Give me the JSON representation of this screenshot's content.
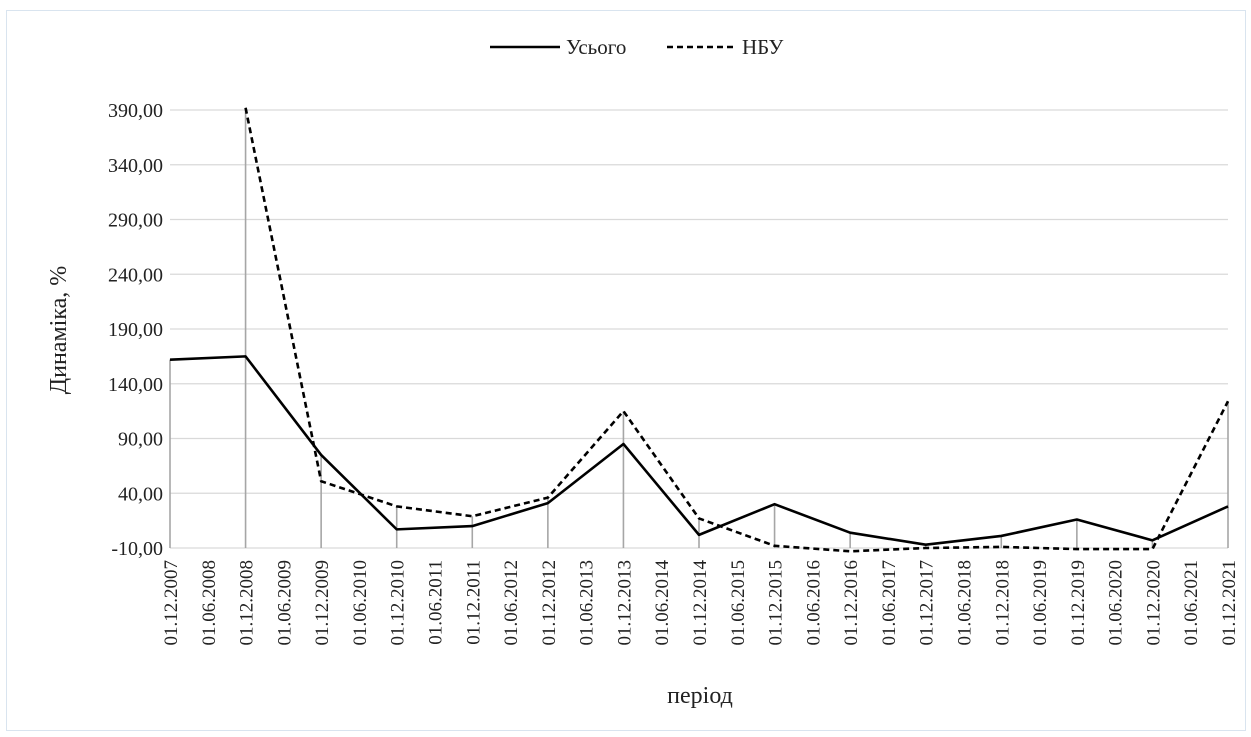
{
  "chart_data": {
    "type": "line",
    "title": "",
    "xlabel": "період",
    "ylabel": "Динаміка, %",
    "ylim": [
      -10,
      390
    ],
    "yticks": [
      "390,00",
      "340,00",
      "290,00",
      "240,00",
      "190,00",
      "140,00",
      "90,00",
      "40,00",
      "-10,00"
    ],
    "ytick_values": [
      390,
      340,
      290,
      240,
      190,
      140,
      90,
      40,
      -10
    ],
    "x_categories": [
      "01.12.2007",
      "01.06.2008",
      "01.12.2008",
      "01.06.2009",
      "01.12.2009",
      "01.06.2010",
      "01.12.2010",
      "01.06.2011",
      "01.12.2011",
      "01.06.2012",
      "01.12.2012",
      "01.06.2013",
      "01.12.2013",
      "01.06.2014",
      "01.12.2014",
      "01.06.2015",
      "01.12.2015",
      "01.06.2016",
      "01.12.2016",
      "01.06.2017",
      "01.12.2017",
      "01.06.2018",
      "01.12.2018",
      "01.06.2019",
      "01.12.2019",
      "01.06.2020",
      "01.12.2020",
      "01.06.2021",
      "01.12.2021"
    ],
    "grid": true,
    "legend_position": "top-center",
    "series": [
      {
        "name": "Усього",
        "style": "solid",
        "color": "#000000",
        "x": [
          "01.12.2007",
          "01.12.2008",
          "01.12.2009",
          "01.12.2010",
          "01.12.2011",
          "01.12.2012",
          "01.12.2013",
          "01.12.2014",
          "01.12.2015",
          "01.12.2016",
          "01.12.2017",
          "01.12.2018",
          "01.12.2019",
          "01.12.2020",
          "01.12.2021"
        ],
        "values": [
          162,
          165,
          75,
          7,
          10,
          31,
          85,
          2,
          30,
          4,
          -7,
          1,
          16,
          -3,
          28
        ]
      },
      {
        "name": "НБУ",
        "style": "dashed",
        "color": "#000000",
        "x": [
          "01.12.2008",
          "01.12.2009",
          "01.12.2010",
          "01.12.2011",
          "01.12.2012",
          "01.12.2013",
          "01.12.2014",
          "01.12.2015",
          "01.12.2016",
          "01.12.2017",
          "01.12.2018",
          "01.12.2019",
          "01.12.2020",
          "01.12.2021"
        ],
        "values": [
          392,
          51,
          28,
          19,
          36,
          115,
          17,
          -8,
          -13,
          -10,
          -9,
          -11,
          -11,
          124
        ]
      }
    ]
  },
  "colors": {
    "gridline": "#d9d9d9",
    "drop_line": "#a6a6a6",
    "frame_border": "#d9e4ef",
    "series": "#000000"
  }
}
